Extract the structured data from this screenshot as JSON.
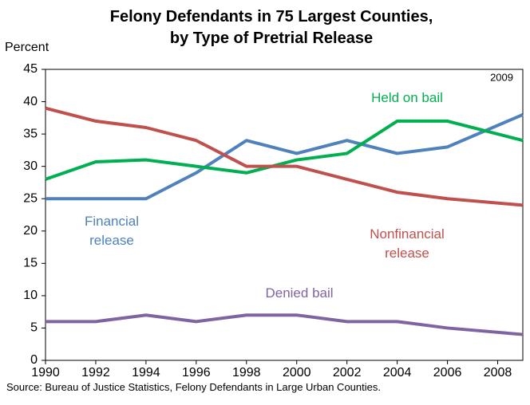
{
  "chart_data": {
    "type": "line",
    "title": "Felony Defendants in 75 Largest Counties, by Type of Pretrial Release",
    "y_label": "Percent",
    "annotation": "2009",
    "source": "Source: Bureau of Justice Statistics, Felony Defendants in Large Urban Counties.",
    "x": [
      1990,
      1992,
      1994,
      1996,
      1998,
      2000,
      2002,
      2004,
      2006,
      2009
    ],
    "xlim": [
      1990,
      2009
    ],
    "xticks": [
      1990,
      1992,
      1994,
      1996,
      1998,
      2000,
      2002,
      2004,
      2006,
      2008
    ],
    "ylim": [
      0,
      45
    ],
    "yticks": [
      0,
      5,
      10,
      15,
      20,
      25,
      30,
      35,
      40,
      45
    ],
    "series": [
      {
        "name": "Financial release",
        "color": "#4f81bd",
        "values": [
          25,
          25,
          25,
          29,
          34,
          32,
          34,
          32,
          33,
          38
        ]
      },
      {
        "name": "Held on bail",
        "color": "#00b050",
        "values": [
          28,
          30.7,
          31,
          30,
          29,
          31,
          32,
          37,
          37,
          34
        ]
      },
      {
        "name": "Nonfinancial release",
        "color": "#c0504d",
        "values": [
          39,
          37,
          36,
          34,
          30,
          30,
          28,
          26,
          25,
          24
        ]
      },
      {
        "name": "Denied bail",
        "color": "#8064a2",
        "values": [
          6,
          6,
          7,
          6,
          7,
          7,
          6,
          6,
          5,
          4
        ]
      }
    ]
  }
}
